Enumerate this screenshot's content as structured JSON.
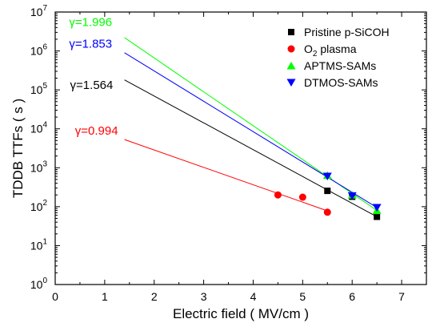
{
  "chart_data": {
    "type": "scatter",
    "title": "",
    "xlabel": "Electric field ( MV/cm )",
    "ylabel": "TDDB TTFs ( s )",
    "xlim": [
      0,
      7.5
    ],
    "ylim_exp": [
      0,
      7
    ],
    "y_scale": "log",
    "x_ticks": [
      "0",
      "1",
      "2",
      "3",
      "4",
      "5",
      "6",
      "7"
    ],
    "x_tick_values": [
      0,
      1,
      2,
      3,
      4,
      5,
      6,
      7
    ],
    "y_ticks_exp": [
      0,
      1,
      2,
      3,
      4,
      5,
      6,
      7
    ],
    "y_tick_base": "10",
    "legend_position": "top-right",
    "series": [
      {
        "name": "Pristine p-SiCOH",
        "marker": "square",
        "color": "#000000",
        "points": [
          [
            5.5,
            255
          ],
          [
            6.0,
            180
          ],
          [
            6.5,
            55
          ]
        ],
        "fit": {
          "x": [
            1.4,
            6.5
          ],
          "y": [
            180000,
            55
          ]
        },
        "gamma_label": "γ=1.564",
        "gamma_prefix": "γ",
        "gamma_value": "=1.564",
        "gamma_at": [
          0.3,
          105000
        ]
      },
      {
        "name": "O2 plasma",
        "name_main": "O",
        "name_sub": "2",
        "name_rest": " plasma",
        "marker": "circle",
        "color": "#ff0000",
        "points": [
          [
            4.5,
            200
          ],
          [
            5.0,
            175
          ],
          [
            5.5,
            72
          ]
        ],
        "fit": {
          "x": [
            1.4,
            5.5
          ],
          "y": [
            5300,
            78
          ]
        },
        "gamma_label": "γ=0.994",
        "gamma_prefix": "γ",
        "gamma_value": "=0.994",
        "gamma_at": [
          0.4,
          7000
        ]
      },
      {
        "name": "APTMS-SAMs",
        "marker": "triangle-up",
        "color": "#00ff00",
        "points": [
          [
            5.5,
            640
          ],
          [
            6.0,
            200
          ],
          [
            6.5,
            80
          ]
        ],
        "fit": {
          "x": [
            1.4,
            6.5
          ],
          "y": [
            2200000,
            80
          ]
        },
        "gamma_label": "γ=1.996",
        "gamma_prefix": "γ",
        "gamma_value": "=1.996",
        "gamma_at": [
          0.28,
          4400000
        ]
      },
      {
        "name": "DTMOS-SAMs",
        "marker": "triangle-down",
        "color": "#0000ff",
        "points": [
          [
            5.5,
            600
          ],
          [
            6.0,
            190
          ],
          [
            6.5,
            95
          ]
        ],
        "fit": {
          "x": [
            1.4,
            6.5
          ],
          "y": [
            900000,
            95
          ]
        },
        "gamma_label": "γ=1.853",
        "gamma_prefix": "γ",
        "gamma_value": "=1.853",
        "gamma_at": [
          0.28,
          1200000
        ]
      }
    ]
  }
}
